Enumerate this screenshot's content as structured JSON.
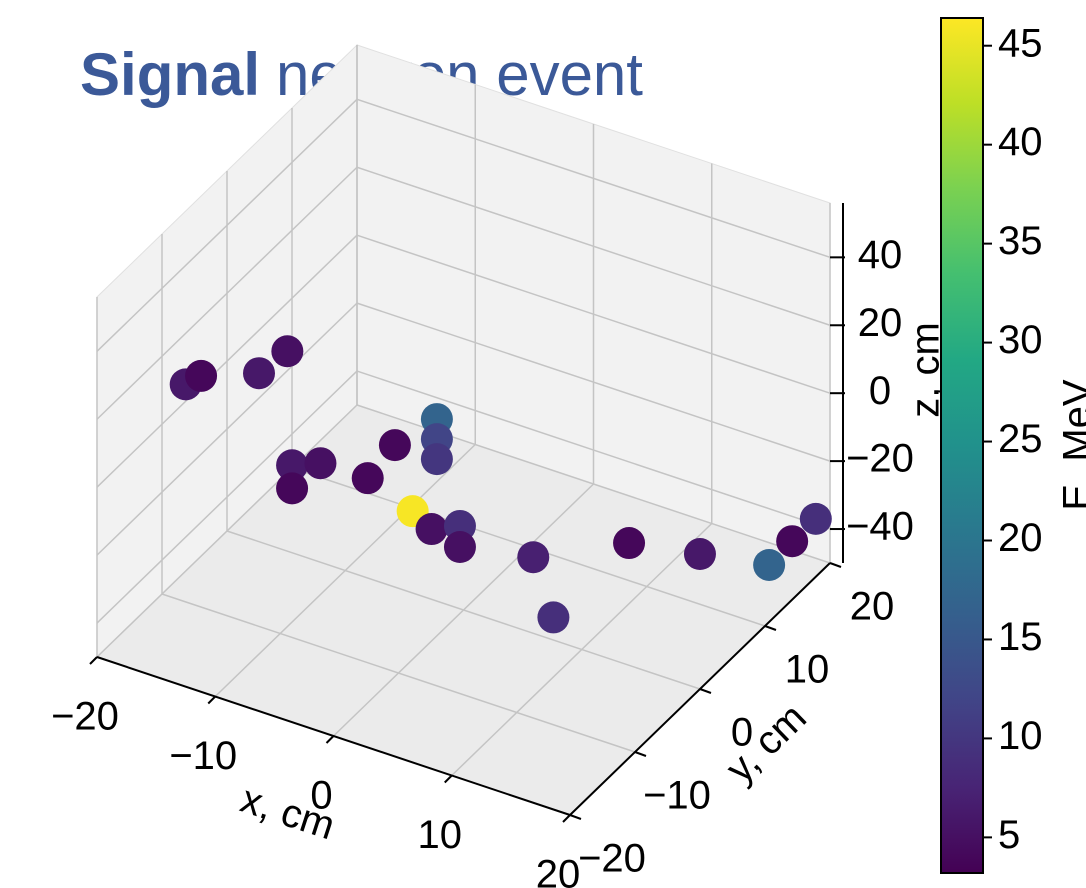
{
  "chart_data": {
    "type": "scatter3d",
    "title_bold": "Signal",
    "title": "neutron event",
    "x_label": "x, cm",
    "y_label": "y, cm",
    "z_label": "z, cm",
    "colorbar_label": "E, MeV",
    "colormap": "viridis",
    "xlim": [
      -20,
      20
    ],
    "ylim": [
      -20,
      20
    ],
    "zlim": [
      -50,
      56
    ],
    "clim": [
      3.2,
      46.4
    ],
    "xticks": [
      {
        "value": -20,
        "label": "−20"
      },
      {
        "value": -10,
        "label": "−10"
      },
      0,
      10,
      20
    ],
    "yticks": [
      {
        "value": -20,
        "label": "−20"
      },
      {
        "value": -10,
        "label": "−10"
      },
      0,
      10,
      20
    ],
    "zticks": [
      {
        "value": -40,
        "label": "−40"
      },
      {
        "value": -20,
        "label": "−20"
      },
      0,
      20,
      40
    ],
    "cticks": [
      5,
      10,
      15,
      20,
      25,
      30,
      35,
      40,
      45
    ],
    "grid": true,
    "x": [
      -12.5,
      -11.2,
      -6.3,
      -9.4,
      -9,
      -9,
      -6.6,
      -8.1,
      -5.8,
      -2.25,
      -2.25,
      -2.25,
      -4.3,
      -2.7,
      -0.3,
      -0.3,
      5.9,
      13.1,
      14,
      14.5,
      17.6,
      16.8,
      18.8
    ],
    "y": [
      -20,
      -20,
      -20,
      -10,
      -10,
      -10,
      -10,
      0,
      0,
      0,
      0,
      0,
      0,
      0,
      0,
      0,
      0,
      -10,
      0,
      10,
      15,
      20,
      20
    ],
    "z": [
      39,
      43,
      49.5,
      33.8,
      0.7,
      -6.1,
      4.1,
      -20.6,
      -8.2,
      3.6,
      -2.3,
      -8.2,
      -25.9,
      -29.3,
      -25.6,
      -31.8,
      -27.6,
      -18.4,
      -14,
      -35.2,
      -44.1,
      -47.3,
      -38.4
    ],
    "values": [
      6,
      4,
      6,
      5,
      6,
      4,
      5,
      4,
      4,
      17,
      12,
      10,
      46,
      5,
      9,
      5,
      7,
      9,
      4,
      6,
      17,
      4,
      9
    ]
  }
}
